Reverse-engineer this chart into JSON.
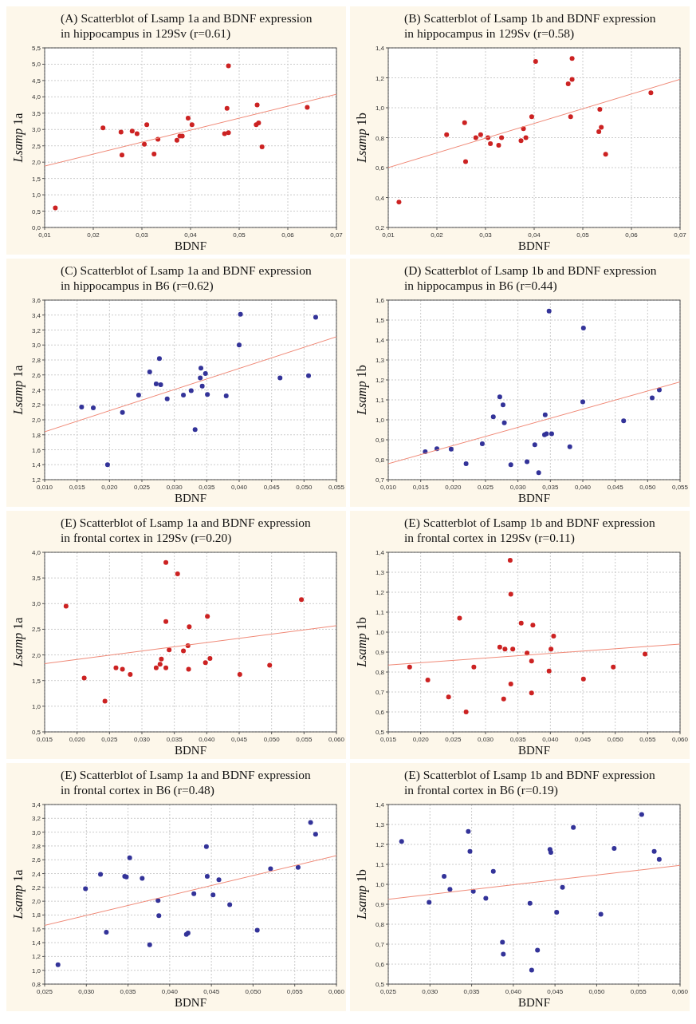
{
  "chart_data": [
    {
      "type": "scatter",
      "title": "(A) Scatterblot of Lsamp 1a and BDNF expression in hippocampus in 129Sv (r=0.61)",
      "xlabel": "BDNF",
      "ylabel": "Lsamp 1a",
      "grid": true,
      "xlim": [
        0.01,
        0.07
      ],
      "xticks": [
        {
          "value": 0.01,
          "label": "0,01"
        },
        {
          "value": 0.02,
          "label": "0,02"
        },
        {
          "value": 0.03,
          "label": "0,03"
        },
        {
          "value": 0.04,
          "label": "0,04"
        },
        {
          "value": 0.05,
          "label": "0,05"
        },
        {
          "value": 0.06,
          "label": "0,06"
        },
        {
          "value": 0.07,
          "label": "0,07"
        }
      ],
      "ylim": [
        0,
        5.5
      ],
      "yticks": [
        {
          "value": 0,
          "label": "0,0"
        },
        {
          "value": 0.5,
          "label": "0,5"
        },
        {
          "value": 1,
          "label": "1,0"
        },
        {
          "value": 1.5,
          "label": "1,5"
        },
        {
          "value": 2,
          "label": "2,0"
        },
        {
          "value": 2.5,
          "label": "2,5"
        },
        {
          "value": 3,
          "label": "3,0"
        },
        {
          "value": 3.5,
          "label": "3,5"
        },
        {
          "value": 4,
          "label": "4,0"
        },
        {
          "value": 4.5,
          "label": "4,5"
        },
        {
          "value": 5,
          "label": "5,0"
        },
        {
          "value": 5.5,
          "label": "5,5"
        }
      ],
      "series": [
        {
          "marker": "circle",
          "color": "#cc2222",
          "x": [
            0.0122,
            0.022,
            0.0257,
            0.0259,
            0.028,
            0.029,
            0.0305,
            0.031,
            0.0325,
            0.0333,
            0.0372,
            0.0378,
            0.0383,
            0.0395,
            0.0403,
            0.047,
            0.0475,
            0.0478,
            0.0478,
            0.0535,
            0.0537,
            0.054,
            0.0547,
            0.064
          ],
          "values": [
            0.6,
            3.05,
            2.92,
            2.22,
            2.95,
            2.87,
            2.55,
            3.15,
            2.25,
            2.7,
            2.67,
            2.8,
            2.8,
            3.35,
            3.15,
            2.87,
            3.65,
            4.95,
            2.9,
            3.15,
            3.75,
            3.2,
            2.47,
            3.68
          ]
        },
        {
          "type": "line",
          "color": "#f08a78",
          "x": [
            0.01,
            0.07
          ],
          "values": [
            1.88,
            4.08
          ]
        }
      ]
    },
    {
      "type": "scatter",
      "title": "(B) Scatterblot of Lsamp 1b and BDNF expression in hippocampus in 129Sv (r=0.58)",
      "xlabel": "BDNF",
      "ylabel": "Lsamp 1b",
      "grid": true,
      "xlim": [
        0.01,
        0.07
      ],
      "xticks": [
        {
          "value": 0.01,
          "label": "0,01"
        },
        {
          "value": 0.02,
          "label": "0,02"
        },
        {
          "value": 0.03,
          "label": "0,03"
        },
        {
          "value": 0.04,
          "label": "0,04"
        },
        {
          "value": 0.05,
          "label": "0,05"
        },
        {
          "value": 0.06,
          "label": "0,06"
        },
        {
          "value": 0.07,
          "label": "0,07"
        }
      ],
      "ylim": [
        0.2,
        1.4
      ],
      "yticks": [
        {
          "value": 0.2,
          "label": "0,2"
        },
        {
          "value": 0.4,
          "label": "0,4"
        },
        {
          "value": 0.6,
          "label": "0,6"
        },
        {
          "value": 0.8,
          "label": "0,8"
        },
        {
          "value": 1,
          "label": "1,0"
        },
        {
          "value": 1.2,
          "label": "1,2"
        },
        {
          "value": 1.4,
          "label": "1,4"
        }
      ],
      "series": [
        {
          "marker": "circle",
          "color": "#cc2222",
          "x": [
            0.0122,
            0.022,
            0.0257,
            0.0259,
            0.028,
            0.029,
            0.0305,
            0.031,
            0.0327,
            0.0333,
            0.0373,
            0.0378,
            0.0383,
            0.0395,
            0.0403,
            0.047,
            0.0475,
            0.0478,
            0.0478,
            0.0533,
            0.0535,
            0.0538,
            0.0547,
            0.064
          ],
          "values": [
            0.37,
            0.82,
            0.9,
            0.64,
            0.8,
            0.82,
            0.8,
            0.76,
            0.75,
            0.8,
            0.78,
            0.86,
            0.8,
            0.94,
            1.31,
            1.16,
            0.94,
            1.33,
            1.19,
            0.84,
            0.99,
            0.87,
            0.69,
            1.1
          ]
        },
        {
          "type": "line",
          "color": "#f08a78",
          "x": [
            0.01,
            0.07
          ],
          "values": [
            0.6,
            1.19
          ]
        }
      ]
    },
    {
      "type": "scatter",
      "title": "(C) Scatterblot of Lsamp 1a and BDNF expression in hippocampus in B6 (r=0.62)",
      "xlabel": "BDNF",
      "ylabel": "Lsamp 1a",
      "grid": true,
      "xlim": [
        0.01,
        0.055
      ],
      "xticks": [
        {
          "value": 0.01,
          "label": "0,010"
        },
        {
          "value": 0.015,
          "label": "0,015"
        },
        {
          "value": 0.02,
          "label": "0,020"
        },
        {
          "value": 0.025,
          "label": "0,025"
        },
        {
          "value": 0.03,
          "label": "0,030"
        },
        {
          "value": 0.035,
          "label": "0,035"
        },
        {
          "value": 0.04,
          "label": "0,040"
        },
        {
          "value": 0.045,
          "label": "0,045"
        },
        {
          "value": 0.05,
          "label": "0,050"
        },
        {
          "value": 0.055,
          "label": "0,055"
        }
      ],
      "ylim": [
        1.2,
        3.6
      ],
      "yticks": [
        {
          "value": 1.2,
          "label": "1,2"
        },
        {
          "value": 1.4,
          "label": "1,4"
        },
        {
          "value": 1.6,
          "label": "1,6"
        },
        {
          "value": 1.8,
          "label": "1,8"
        },
        {
          "value": 2,
          "label": "2,0"
        },
        {
          "value": 2.2,
          "label": "2,2"
        },
        {
          "value": 2.4,
          "label": "2,4"
        },
        {
          "value": 2.6,
          "label": "2,6"
        },
        {
          "value": 2.8,
          "label": "2,8"
        },
        {
          "value": 3,
          "label": "3,0"
        },
        {
          "value": 3.2,
          "label": "3,2"
        },
        {
          "value": 3.4,
          "label": "3,4"
        },
        {
          "value": 3.6,
          "label": "3,6"
        }
      ],
      "series": [
        {
          "marker": "circle",
          "color": "#333399",
          "x": [
            0.0157,
            0.0175,
            0.0197,
            0.022,
            0.0245,
            0.0262,
            0.0272,
            0.0277,
            0.0279,
            0.0289,
            0.0314,
            0.0326,
            0.0332,
            0.034,
            0.0341,
            0.0343,
            0.0348,
            0.0351,
            0.038,
            0.04,
            0.0402,
            0.0463,
            0.0507,
            0.0518
          ],
          "values": [
            2.17,
            2.16,
            1.4,
            2.1,
            2.33,
            2.64,
            2.48,
            2.82,
            2.47,
            2.28,
            2.33,
            2.39,
            1.87,
            2.56,
            2.69,
            2.45,
            2.62,
            2.34,
            2.32,
            3.0,
            3.41,
            2.56,
            2.59,
            3.37
          ]
        },
        {
          "type": "line",
          "color": "#f08a78",
          "x": [
            0.01,
            0.055
          ],
          "values": [
            1.84,
            3.11
          ]
        }
      ]
    },
    {
      "type": "scatter",
      "title": "(D) Scatterblot of Lsamp 1b and BDNF expression in hippocampus in B6 (r=0.44)",
      "xlabel": "BDNF",
      "ylabel": "Lsamp 1b",
      "grid": true,
      "xlim": [
        0.01,
        0.055
      ],
      "xticks": [
        {
          "value": 0.01,
          "label": "0,010"
        },
        {
          "value": 0.015,
          "label": "0,015"
        },
        {
          "value": 0.02,
          "label": "0,020"
        },
        {
          "value": 0.025,
          "label": "0,025"
        },
        {
          "value": 0.03,
          "label": "0,030"
        },
        {
          "value": 0.035,
          "label": "0,035"
        },
        {
          "value": 0.04,
          "label": "0,040"
        },
        {
          "value": 0.045,
          "label": "0,045"
        },
        {
          "value": 0.05,
          "label": "0,050"
        },
        {
          "value": 0.055,
          "label": "0,055"
        }
      ],
      "ylim": [
        0.7,
        1.6
      ],
      "yticks": [
        {
          "value": 0.7,
          "label": "0,7"
        },
        {
          "value": 0.8,
          "label": "0,8"
        },
        {
          "value": 0.9,
          "label": "0,9"
        },
        {
          "value": 1,
          "label": "1,0"
        },
        {
          "value": 1.1,
          "label": "1,1"
        },
        {
          "value": 1.2,
          "label": "1,2"
        },
        {
          "value": 1.3,
          "label": "1,3"
        },
        {
          "value": 1.4,
          "label": "1,4"
        },
        {
          "value": 1.5,
          "label": "1,5"
        },
        {
          "value": 1.6,
          "label": "1,6"
        }
      ],
      "series": [
        {
          "marker": "circle",
          "color": "#333399",
          "x": [
            0.0157,
            0.0175,
            0.0197,
            0.022,
            0.0245,
            0.0262,
            0.0272,
            0.0277,
            0.0279,
            0.0289,
            0.0314,
            0.0326,
            0.0332,
            0.0341,
            0.0342,
            0.0344,
            0.0348,
            0.0352,
            0.038,
            0.04,
            0.0401,
            0.0463,
            0.0507,
            0.0518
          ],
          "values": [
            0.84,
            0.855,
            0.853,
            0.78,
            0.88,
            1.015,
            1.115,
            1.075,
            0.985,
            0.775,
            0.79,
            0.875,
            0.735,
            0.925,
            1.025,
            0.93,
            1.545,
            0.93,
            0.865,
            1.09,
            1.46,
            0.995,
            1.11,
            1.15
          ]
        },
        {
          "type": "line",
          "color": "#f08a78",
          "x": [
            0.01,
            0.055
          ],
          "values": [
            0.78,
            1.19
          ]
        }
      ]
    },
    {
      "type": "scatter",
      "title": "(E) Scatterblot of Lsamp 1a and BDNF expression in frontal cortex in 129Sv (r=0.20)",
      "xlabel": "BDNF",
      "ylabel": "Lsamp 1a",
      "grid": true,
      "xlim": [
        0.015,
        0.06
      ],
      "xticks": [
        {
          "value": 0.015,
          "label": "0,015"
        },
        {
          "value": 0.02,
          "label": "0,020"
        },
        {
          "value": 0.025,
          "label": "0,025"
        },
        {
          "value": 0.03,
          "label": "0,030"
        },
        {
          "value": 0.035,
          "label": "0,035"
        },
        {
          "value": 0.04,
          "label": "0,040"
        },
        {
          "value": 0.045,
          "label": "0,045"
        },
        {
          "value": 0.05,
          "label": "0,050"
        },
        {
          "value": 0.055,
          "label": "0,055"
        },
        {
          "value": 0.06,
          "label": "0,060"
        }
      ],
      "ylim": [
        0.5,
        4
      ],
      "yticks": [
        {
          "value": 0.5,
          "label": "0,5"
        },
        {
          "value": 1,
          "label": "1,0"
        },
        {
          "value": 1.5,
          "label": "1,5"
        },
        {
          "value": 2,
          "label": "2,0"
        },
        {
          "value": 2.5,
          "label": "2,5"
        },
        {
          "value": 3,
          "label": "3,0"
        },
        {
          "value": 3.5,
          "label": "3,5"
        },
        {
          "value": 4,
          "label": "4,0"
        }
      ],
      "series": [
        {
          "marker": "circle",
          "color": "#cc2222",
          "x": [
            0.0183,
            0.0211,
            0.0243,
            0.026,
            0.027,
            0.0282,
            0.0322,
            0.0328,
            0.033,
            0.0337,
            0.0337,
            0.0337,
            0.0342,
            0.0355,
            0.0364,
            0.0371,
            0.0372,
            0.0373,
            0.0398,
            0.0401,
            0.0405,
            0.0451,
            0.0497,
            0.0546
          ],
          "values": [
            2.95,
            1.55,
            1.1,
            1.75,
            1.72,
            1.62,
            1.75,
            1.82,
            1.92,
            1.75,
            2.65,
            3.8,
            2.1,
            3.58,
            2.08,
            2.18,
            1.72,
            2.55,
            1.85,
            2.75,
            1.93,
            1.62,
            1.8,
            3.08
          ]
        },
        {
          "type": "line",
          "color": "#f08a78",
          "x": [
            0.015,
            0.06
          ],
          "values": [
            1.83,
            2.57
          ]
        }
      ]
    },
    {
      "type": "scatter",
      "title": "(E) Scatterblot of Lsamp 1b and BDNF expression in frontal cortex in 129Sv (r=0.11)",
      "xlabel": "BDNF",
      "ylabel": "Lsamp 1b",
      "grid": true,
      "xlim": [
        0.015,
        0.06
      ],
      "xticks": [
        {
          "value": 0.015,
          "label": "0,015"
        },
        {
          "value": 0.02,
          "label": "0,020"
        },
        {
          "value": 0.025,
          "label": "0,025"
        },
        {
          "value": 0.03,
          "label": "0,030"
        },
        {
          "value": 0.035,
          "label": "0,035"
        },
        {
          "value": 0.04,
          "label": "0,040"
        },
        {
          "value": 0.045,
          "label": "0,045"
        },
        {
          "value": 0.05,
          "label": "0,050"
        },
        {
          "value": 0.055,
          "label": "0,055"
        },
        {
          "value": 0.06,
          "label": "0,060"
        }
      ],
      "ylim": [
        0.5,
        1.4
      ],
      "yticks": [
        {
          "value": 0.5,
          "label": "0,5"
        },
        {
          "value": 0.6,
          "label": "0,6"
        },
        {
          "value": 0.7,
          "label": "0,7"
        },
        {
          "value": 0.8,
          "label": "0,8"
        },
        {
          "value": 0.9,
          "label": "0,9"
        },
        {
          "value": 1,
          "label": "1,0"
        },
        {
          "value": 1.1,
          "label": "1,1"
        },
        {
          "value": 1.2,
          "label": "1,2"
        },
        {
          "value": 1.3,
          "label": "1,3"
        },
        {
          "value": 1.4,
          "label": "1,4"
        }
      ],
      "series": [
        {
          "marker": "circle",
          "color": "#cc2222",
          "x": [
            0.0183,
            0.0211,
            0.0243,
            0.026,
            0.027,
            0.0282,
            0.0322,
            0.0328,
            0.033,
            0.0338,
            0.0339,
            0.0339,
            0.0342,
            0.0355,
            0.0364,
            0.0371,
            0.0371,
            0.0373,
            0.0398,
            0.0401,
            0.0405,
            0.0451,
            0.0497,
            0.0546
          ],
          "values": [
            0.825,
            0.76,
            0.675,
            1.07,
            0.6,
            0.825,
            0.925,
            0.665,
            0.915,
            1.36,
            1.19,
            0.74,
            0.915,
            1.045,
            0.895,
            0.695,
            0.855,
            1.035,
            0.805,
            0.915,
            0.98,
            0.765,
            0.825,
            0.89
          ]
        },
        {
          "type": "line",
          "color": "#f08a78",
          "x": [
            0.015,
            0.06
          ],
          "values": [
            0.835,
            0.94
          ]
        }
      ]
    },
    {
      "type": "scatter",
      "title": "(E) Scatterblot of Lsamp 1a and BDNF expression in frontal cortex in B6 (r=0.48)",
      "xlabel": "BDNF",
      "ylabel": "Lsamp 1a",
      "grid": true,
      "xlim": [
        0.025,
        0.06
      ],
      "xticks": [
        {
          "value": 0.025,
          "label": "0,025"
        },
        {
          "value": 0.03,
          "label": "0,030"
        },
        {
          "value": 0.035,
          "label": "0,035"
        },
        {
          "value": 0.04,
          "label": "0,040"
        },
        {
          "value": 0.045,
          "label": "0,045"
        },
        {
          "value": 0.05,
          "label": "0,050"
        },
        {
          "value": 0.055,
          "label": "0,055"
        },
        {
          "value": 0.06,
          "label": "0,060"
        }
      ],
      "ylim": [
        0.8,
        3.4
      ],
      "yticks": [
        {
          "value": 0.8,
          "label": "0,8"
        },
        {
          "value": 1,
          "label": "1,0"
        },
        {
          "value": 1.2,
          "label": "1,2"
        },
        {
          "value": 1.4,
          "label": "1,4"
        },
        {
          "value": 1.6,
          "label": "1,6"
        },
        {
          "value": 1.8,
          "label": "1,8"
        },
        {
          "value": 2,
          "label": "2,0"
        },
        {
          "value": 2.2,
          "label": "2,2"
        },
        {
          "value": 2.4,
          "label": "2,4"
        },
        {
          "value": 2.6,
          "label": "2,6"
        },
        {
          "value": 2.8,
          "label": "2,8"
        },
        {
          "value": 3,
          "label": "3,0"
        },
        {
          "value": 3.2,
          "label": "3,2"
        },
        {
          "value": 3.4,
          "label": "3,4"
        }
      ],
      "series": [
        {
          "marker": "circle",
          "color": "#333399",
          "x": [
            0.0266,
            0.0299,
            0.0317,
            0.0324,
            0.0346,
            0.0348,
            0.0352,
            0.0367,
            0.0376,
            0.0386,
            0.0387,
            0.042,
            0.0422,
            0.0429,
            0.0444,
            0.0445,
            0.0452,
            0.0459,
            0.0472,
            0.0505,
            0.0521,
            0.0554,
            0.0569,
            0.0575
          ],
          "values": [
            1.08,
            2.18,
            2.39,
            1.55,
            2.36,
            2.35,
            2.63,
            2.33,
            1.37,
            2.01,
            1.79,
            1.52,
            1.54,
            2.11,
            2.79,
            2.36,
            2.09,
            2.31,
            1.95,
            1.58,
            2.47,
            2.49,
            3.14,
            2.97
          ]
        },
        {
          "type": "line",
          "color": "#f08a78",
          "x": [
            0.025,
            0.06
          ],
          "values": [
            1.65,
            2.66
          ]
        }
      ]
    },
    {
      "type": "scatter",
      "title": "(E) Scatterblot of Lsamp 1b and BDNF expression in frontal cortex in B6 (r=0.19)",
      "xlabel": "BDNF",
      "ylabel": "Lsamp 1b",
      "grid": true,
      "xlim": [
        0.025,
        0.06
      ],
      "xticks": [
        {
          "value": 0.025,
          "label": "0,025"
        },
        {
          "value": 0.03,
          "label": "0,030"
        },
        {
          "value": 0.035,
          "label": "0,035"
        },
        {
          "value": 0.04,
          "label": "0,040"
        },
        {
          "value": 0.045,
          "label": "0,045"
        },
        {
          "value": 0.05,
          "label": "0,050"
        },
        {
          "value": 0.055,
          "label": "0,055"
        },
        {
          "value": 0.06,
          "label": "0,060"
        }
      ],
      "ylim": [
        0.5,
        1.4
      ],
      "yticks": [
        {
          "value": 0.5,
          "label": "0,5"
        },
        {
          "value": 0.6,
          "label": "0,6"
        },
        {
          "value": 0.7,
          "label": "0,7"
        },
        {
          "value": 0.8,
          "label": "0,8"
        },
        {
          "value": 0.9,
          "label": "0,9"
        },
        {
          "value": 1,
          "label": "1,0"
        },
        {
          "value": 1.1,
          "label": "1,1"
        },
        {
          "value": 1.2,
          "label": "1,2"
        },
        {
          "value": 1.3,
          "label": "1,3"
        },
        {
          "value": 1.4,
          "label": "1,4"
        }
      ],
      "series": [
        {
          "marker": "circle",
          "color": "#333399",
          "x": [
            0.0266,
            0.0299,
            0.0317,
            0.0324,
            0.0346,
            0.0348,
            0.0352,
            0.0367,
            0.0376,
            0.0387,
            0.0388,
            0.042,
            0.0422,
            0.0429,
            0.0444,
            0.0445,
            0.0452,
            0.0459,
            0.0472,
            0.0505,
            0.0521,
            0.0554,
            0.0569,
            0.0575
          ],
          "values": [
            1.215,
            0.91,
            1.04,
            0.975,
            1.265,
            1.165,
            0.965,
            0.93,
            1.065,
            0.71,
            0.65,
            0.905,
            0.57,
            0.67,
            1.175,
            1.16,
            0.86,
            0.985,
            1.285,
            0.85,
            1.18,
            1.35,
            1.165,
            1.125
          ]
        },
        {
          "type": "line",
          "color": "#f08a78",
          "x": [
            0.025,
            0.06
          ],
          "values": [
            0.925,
            1.095
          ]
        }
      ]
    }
  ]
}
